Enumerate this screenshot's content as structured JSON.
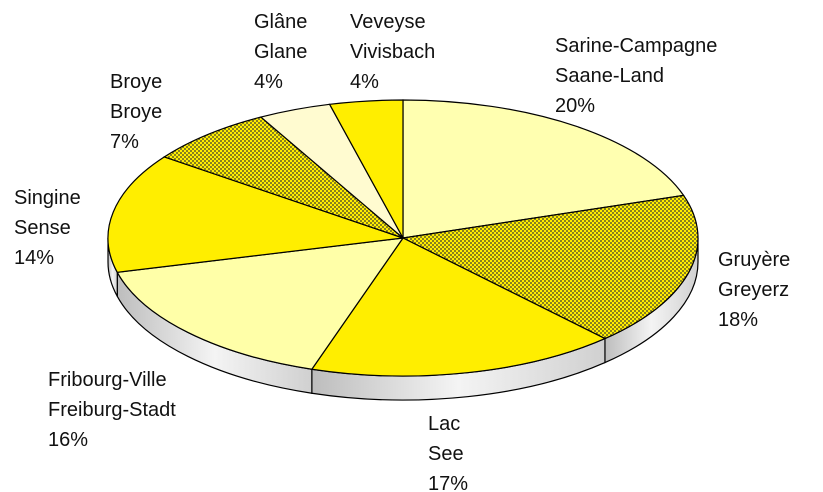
{
  "chart_data": {
    "type": "pie3d",
    "categories": [
      [
        "Sarine-Campagne",
        "Saane-Land"
      ],
      [
        "Gruyère",
        "Greyerz"
      ],
      [
        "Lac",
        "See"
      ],
      [
        "Fribourg-Ville",
        "Freiburg-Stadt"
      ],
      [
        "Singine",
        "Sense"
      ],
      [
        "Broye",
        "Broye"
      ],
      [
        "Glâne",
        "Glane"
      ],
      [
        "Veveyse",
        "Vivisbach"
      ]
    ],
    "values": [
      20,
      18,
      17,
      16,
      14,
      7,
      4,
      4
    ],
    "value_labels": [
      "20%",
      "18%",
      "17%",
      "16%",
      "14%",
      "7%",
      "4%",
      "4%"
    ],
    "colors": [
      "#ffffb0",
      "#ffee00",
      "#ffee00",
      "#ffffa8",
      "#ffee00",
      "#ffee00",
      "#fffbd0",
      "#ffee00"
    ],
    "hatched": [
      false,
      true,
      false,
      false,
      false,
      true,
      false,
      false
    ]
  }
}
